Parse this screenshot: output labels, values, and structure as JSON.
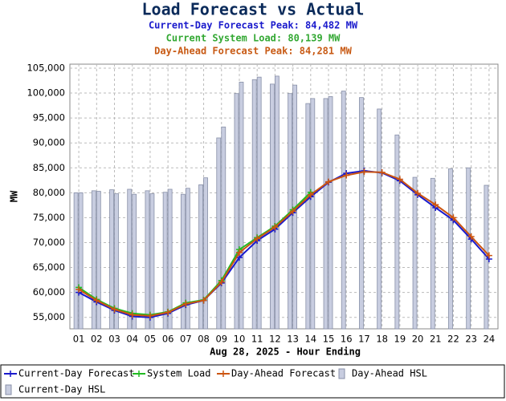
{
  "chart_data": {
    "type": "bar",
    "title": "Load Forecast vs Actual",
    "subtitles": [
      {
        "text": "Current-Day Forecast Peak:  84,482 MW",
        "color": "#1a1acc"
      },
      {
        "text": "Current System Load:  80,139 MW",
        "color": "#33a833"
      },
      {
        "text": "Day-Ahead Forecast Peak:  84,281 MW",
        "color": "#c85a14"
      }
    ],
    "x_label": "Aug 28, 2025 - Hour Ending",
    "y_label": "MW",
    "categories": [
      "01",
      "02",
      "03",
      "04",
      "05",
      "06",
      "07",
      "08",
      "09",
      "10",
      "11",
      "12",
      "13",
      "14",
      "15",
      "16",
      "17",
      "18",
      "19",
      "20",
      "21",
      "22",
      "23",
      "24"
    ],
    "ylim": [
      52700,
      105800
    ],
    "yticks": [
      {
        "value": 55000,
        "label": "55,000"
      },
      {
        "value": 60000,
        "label": "60,000"
      },
      {
        "value": 65000,
        "label": "65,000"
      },
      {
        "value": 70000,
        "label": "70,000"
      },
      {
        "value": 75000,
        "label": "75,000"
      },
      {
        "value": 80000,
        "label": "80,000"
      },
      {
        "value": 85000,
        "label": "85,000"
      },
      {
        "value": 90000,
        "label": "90,000"
      },
      {
        "value": 95000,
        "label": "95,000"
      },
      {
        "value": 100000,
        "label": "100,000"
      },
      {
        "value": 105000,
        "label": "105,000"
      }
    ],
    "grid": true,
    "series": [
      {
        "name": "Current-Day Forecast",
        "type": "line",
        "color": "#1a1acc",
        "values": [
          60000,
          58100,
          56400,
          55200,
          55000,
          55800,
          57500,
          58400,
          61900,
          67000,
          70400,
          72700,
          76000,
          79200,
          82100,
          83900,
          84400,
          84000,
          82400,
          79600,
          77000,
          74500,
          70700,
          66700
        ]
      },
      {
        "name": "System Load",
        "type": "line",
        "color": "#22bb22",
        "values": [
          61000,
          58600,
          56800,
          55800,
          55500,
          56100,
          57900,
          58500,
          62400,
          68600,
          71000,
          73300,
          76600,
          80100,
          null,
          null,
          null,
          null,
          null,
          null,
          null,
          null,
          null,
          null
        ]
      },
      {
        "name": "Day-Ahead Forecast",
        "type": "line",
        "color": "#cc5511",
        "values": [
          60600,
          58400,
          56600,
          55500,
          55300,
          56000,
          57700,
          58400,
          62100,
          68000,
          70800,
          73100,
          76300,
          79600,
          82200,
          83500,
          84200,
          84100,
          82700,
          79900,
          77600,
          75000,
          71200,
          67400
        ]
      },
      {
        "name": "Day-Ahead HSL",
        "type": "bar",
        "color": "#c8cde0",
        "values": [
          80000,
          80400,
          80600,
          80700,
          80400,
          80100,
          79700,
          81600,
          91000,
          99900,
          102700,
          101800,
          99900,
          97900,
          98900,
          100400,
          99100,
          96800,
          91600,
          83100,
          82900,
          84800,
          85000,
          81500
        ]
      },
      {
        "name": "Current-Day HSL",
        "type": "bar",
        "color": "#c8cde0",
        "values": [
          80000,
          80300,
          79800,
          79700,
          79800,
          80700,
          80900,
          83000,
          93200,
          102200,
          103200,
          103400,
          101600,
          98900,
          99300,
          null,
          null,
          null,
          null,
          null,
          null,
          null,
          null,
          null
        ]
      }
    ]
  }
}
